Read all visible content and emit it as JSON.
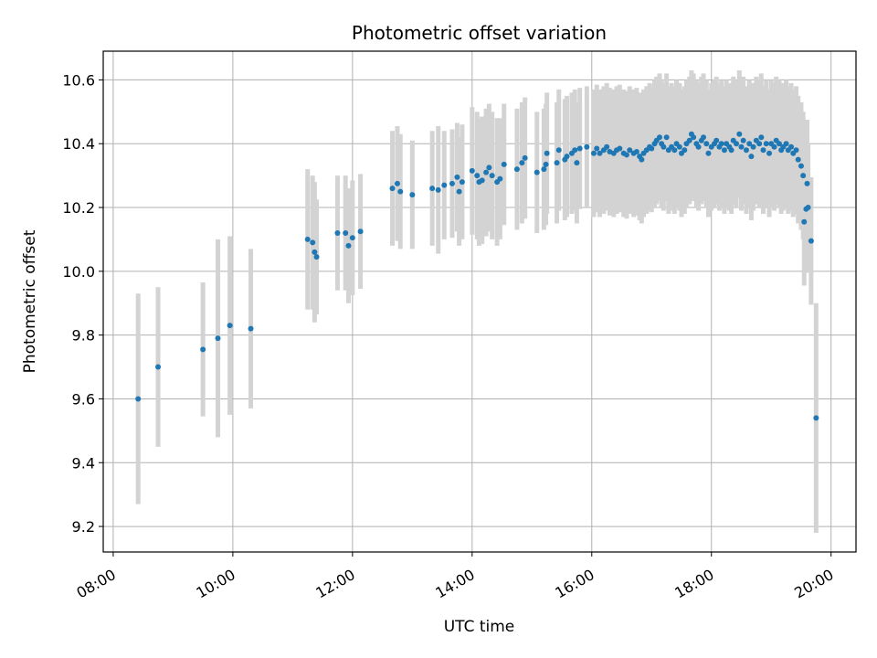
{
  "chart_data": {
    "type": "scatter",
    "title": "Photometric offset variation",
    "xlabel": "UTC time",
    "ylabel": "Photometric offset",
    "x_tick_labels": [
      "08:00",
      "10:00",
      "12:00",
      "14:00",
      "16:00",
      "18:00",
      "20:00"
    ],
    "y_tick_labels": [
      "9.2",
      "9.4",
      "9.6",
      "9.8",
      "10.0",
      "10.2",
      "10.4",
      "10.6"
    ],
    "y_ticks": [
      9.2,
      9.4,
      9.6,
      9.8,
      10.0,
      10.2,
      10.4,
      10.6
    ],
    "xlim": [
      "07:50",
      "20:25"
    ],
    "ylim": [
      9.12,
      10.69
    ],
    "grid": true,
    "colors": {
      "marker": "#1f77b4",
      "errorbar": "#d3d3d3",
      "grid": "#b0b0b0"
    },
    "series": [
      {
        "marker": "point",
        "points": [
          [
            "08:25",
            9.6,
            0.33
          ],
          [
            "08:45",
            9.7,
            0.25
          ],
          [
            "09:30",
            9.755,
            0.21
          ],
          [
            "09:45",
            9.79,
            0.31
          ],
          [
            "09:57",
            9.83,
            0.28
          ],
          [
            "10:18",
            9.82,
            0.25
          ],
          [
            "11:15",
            10.1,
            0.22
          ],
          [
            "11:20",
            10.09,
            0.21
          ],
          [
            "11:22",
            10.06,
            0.22
          ],
          [
            "11:24",
            10.045,
            0.18
          ],
          [
            "11:45",
            10.12,
            0.18
          ],
          [
            "11:53",
            10.12,
            0.18
          ],
          [
            "11:56",
            10.08,
            0.18
          ],
          [
            "12:00",
            10.105,
            0.18
          ],
          [
            "12:08",
            10.125,
            0.18
          ],
          [
            "12:40",
            10.26,
            0.18
          ],
          [
            "12:45",
            10.275,
            0.18
          ],
          [
            "12:48",
            10.25,
            0.18
          ],
          [
            "13:00",
            10.24,
            0.17
          ],
          [
            "13:20",
            10.26,
            0.18
          ],
          [
            "13:26",
            10.255,
            0.2
          ],
          [
            "13:32",
            10.27,
            0.17
          ],
          [
            "13:40",
            10.275,
            0.17
          ],
          [
            "13:45",
            10.295,
            0.17
          ],
          [
            "13:47",
            10.25,
            0.17
          ],
          [
            "13:50",
            10.28,
            0.18
          ],
          [
            "14:00",
            10.315,
            0.2
          ],
          [
            "14:05",
            10.3,
            0.2
          ],
          [
            "14:07",
            10.28,
            0.2
          ],
          [
            "14:10",
            10.285,
            0.2
          ],
          [
            "14:14",
            10.31,
            0.2
          ],
          [
            "14:17",
            10.325,
            0.2
          ],
          [
            "14:20",
            10.3,
            0.2
          ],
          [
            "14:25",
            10.28,
            0.2
          ],
          [
            "14:28",
            10.29,
            0.19
          ],
          [
            "14:32",
            10.335,
            0.19
          ],
          [
            "14:45",
            10.32,
            0.19
          ],
          [
            "14:50",
            10.34,
            0.19
          ],
          [
            "14:53",
            10.355,
            0.19
          ],
          [
            "15:05",
            10.31,
            0.19
          ],
          [
            "15:12",
            10.32,
            0.19
          ],
          [
            "15:14",
            10.335,
            0.19
          ],
          [
            "15:15",
            10.37,
            0.19
          ],
          [
            "15:25",
            10.34,
            0.19
          ],
          [
            "15:27",
            10.38,
            0.19
          ],
          [
            "15:33",
            10.35,
            0.19
          ],
          [
            "15:35",
            10.36,
            0.19
          ],
          [
            "15:40",
            10.37,
            0.19
          ],
          [
            "15:43",
            10.38,
            0.19
          ],
          [
            "15:45",
            10.34,
            0.19
          ],
          [
            "15:48",
            10.385,
            0.19
          ],
          [
            "15:55",
            10.39,
            0.19
          ],
          [
            "16:02",
            10.37,
            0.2
          ],
          [
            "16:05",
            10.385,
            0.2
          ],
          [
            "16:08",
            10.37,
            0.2
          ],
          [
            "16:12",
            10.38,
            0.2
          ],
          [
            "16:15",
            10.39,
            0.2
          ],
          [
            "16:18",
            10.375,
            0.2
          ],
          [
            "16:22",
            10.37,
            0.2
          ],
          [
            "16:25",
            10.38,
            0.2
          ],
          [
            "16:28",
            10.385,
            0.2
          ],
          [
            "16:32",
            10.37,
            0.2
          ],
          [
            "16:35",
            10.365,
            0.2
          ],
          [
            "16:38",
            10.38,
            0.2
          ],
          [
            "16:42",
            10.37,
            0.2
          ],
          [
            "16:45",
            10.375,
            0.2
          ],
          [
            "16:48",
            10.36,
            0.2
          ],
          [
            "16:50",
            10.35,
            0.2
          ],
          [
            "16:52",
            10.37,
            0.2
          ],
          [
            "16:55",
            10.38,
            0.2
          ],
          [
            "16:58",
            10.39,
            0.2
          ],
          [
            "17:00",
            10.385,
            0.2
          ],
          [
            "17:03",
            10.4,
            0.2
          ],
          [
            "17:05",
            10.41,
            0.2
          ],
          [
            "17:08",
            10.42,
            0.2
          ],
          [
            "17:10",
            10.4,
            0.2
          ],
          [
            "17:12",
            10.39,
            0.2
          ],
          [
            "17:15",
            10.42,
            0.2
          ],
          [
            "17:17",
            10.38,
            0.2
          ],
          [
            "17:20",
            10.39,
            0.2
          ],
          [
            "17:23",
            10.38,
            0.2
          ],
          [
            "17:25",
            10.4,
            0.2
          ],
          [
            "17:28",
            10.39,
            0.2
          ],
          [
            "17:30",
            10.37,
            0.2
          ],
          [
            "17:33",
            10.38,
            0.2
          ],
          [
            "17:35",
            10.4,
            0.2
          ],
          [
            "17:38",
            10.41,
            0.2
          ],
          [
            "17:40",
            10.43,
            0.2
          ],
          [
            "17:42",
            10.42,
            0.2
          ],
          [
            "17:45",
            10.4,
            0.2
          ],
          [
            "17:47",
            10.39,
            0.2
          ],
          [
            "17:50",
            10.41,
            0.2
          ],
          [
            "17:52",
            10.42,
            0.2
          ],
          [
            "17:55",
            10.4,
            0.2
          ],
          [
            "17:57",
            10.37,
            0.2
          ],
          [
            "18:00",
            10.39,
            0.2
          ],
          [
            "18:03",
            10.4,
            0.2
          ],
          [
            "18:05",
            10.41,
            0.2
          ],
          [
            "18:08",
            10.39,
            0.2
          ],
          [
            "18:10",
            10.4,
            0.2
          ],
          [
            "18:13",
            10.38,
            0.2
          ],
          [
            "18:15",
            10.4,
            0.2
          ],
          [
            "18:18",
            10.39,
            0.2
          ],
          [
            "18:20",
            10.38,
            0.2
          ],
          [
            "18:22",
            10.41,
            0.2
          ],
          [
            "18:25",
            10.4,
            0.2
          ],
          [
            "18:28",
            10.43,
            0.2
          ],
          [
            "18:30",
            10.39,
            0.2
          ],
          [
            "18:32",
            10.41,
            0.2
          ],
          [
            "18:35",
            10.38,
            0.2
          ],
          [
            "18:38",
            10.4,
            0.2
          ],
          [
            "18:40",
            10.36,
            0.2
          ],
          [
            "18:42",
            10.39,
            0.2
          ],
          [
            "18:45",
            10.41,
            0.2
          ],
          [
            "18:48",
            10.4,
            0.2
          ],
          [
            "18:50",
            10.42,
            0.2
          ],
          [
            "18:52",
            10.38,
            0.2
          ],
          [
            "18:55",
            10.4,
            0.2
          ],
          [
            "18:58",
            10.37,
            0.2
          ],
          [
            "19:00",
            10.4,
            0.2
          ],
          [
            "19:03",
            10.39,
            0.2
          ],
          [
            "19:05",
            10.41,
            0.2
          ],
          [
            "19:08",
            10.4,
            0.2
          ],
          [
            "19:10",
            10.38,
            0.2
          ],
          [
            "19:12",
            10.39,
            0.2
          ],
          [
            "19:15",
            10.4,
            0.2
          ],
          [
            "19:17",
            10.38,
            0.2
          ],
          [
            "19:20",
            10.39,
            0.2
          ],
          [
            "19:22",
            10.37,
            0.2
          ],
          [
            "19:25",
            10.38,
            0.2
          ],
          [
            "19:27",
            10.35,
            0.2
          ],
          [
            "19:30",
            10.33,
            0.2
          ],
          [
            "19:32",
            10.3,
            0.2
          ],
          [
            "19:33",
            10.155,
            0.2
          ],
          [
            "19:35",
            10.195,
            0.2
          ],
          [
            "19:36",
            10.275,
            0.2
          ],
          [
            "19:37",
            10.2,
            0.2
          ],
          [
            "19:40",
            10.095,
            0.2
          ],
          [
            "19:45",
            9.54,
            0.36
          ]
        ]
      }
    ]
  }
}
